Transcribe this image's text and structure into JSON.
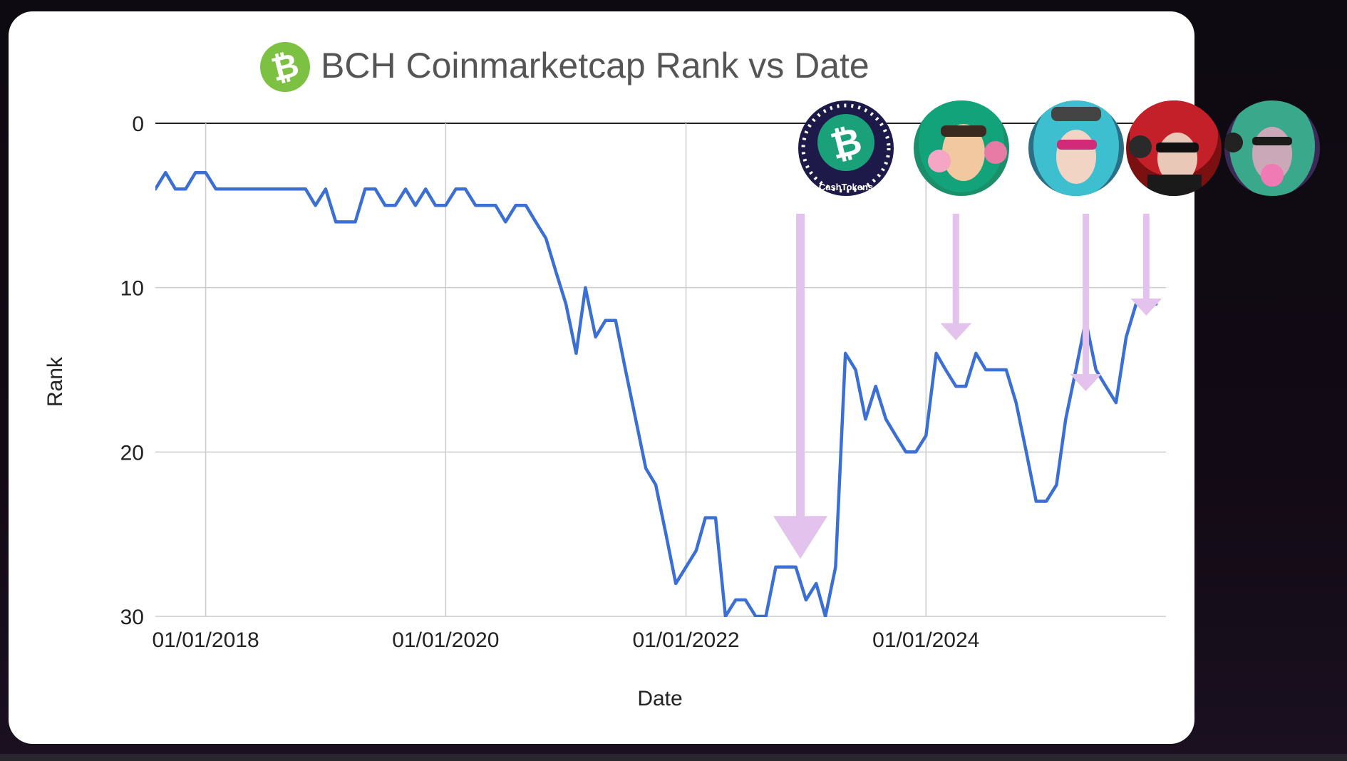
{
  "chart_data": {
    "type": "line",
    "title": "BCH Coinmarketcap Rank vs Date",
    "xlabel": "Date",
    "ylabel": "Rank",
    "y_inverted": true,
    "ylim": [
      0,
      30
    ],
    "y_ticks": [
      0,
      10,
      20,
      30
    ],
    "x_ticks": [
      "01/01/2018",
      "01/01/2020",
      "01/01/2022",
      "01/01/2024"
    ],
    "xlim": [
      "2017-08-01",
      "2025-12-31"
    ],
    "grid": true,
    "colors": {
      "line": "#3b6fd4",
      "arrows": "#e4c2ee",
      "grid": "#cccccc",
      "axis": "#222222"
    },
    "series": [
      {
        "x": [
          "2017-08-01",
          "2017-09-01",
          "2017-10-01",
          "2017-11-01",
          "2017-12-01",
          "2018-01-01",
          "2018-02-01",
          "2018-06-01",
          "2018-11-01",
          "2018-12-01",
          "2019-01-01",
          "2019-02-01",
          "2019-03-01",
          "2019-04-01",
          "2019-05-01",
          "2019-06-01",
          "2019-07-01",
          "2019-08-01",
          "2019-09-01",
          "2019-10-01",
          "2019-11-01",
          "2019-12-01",
          "2020-01-01",
          "2020-02-01",
          "2020-03-01",
          "2020-04-01",
          "2020-06-01",
          "2020-07-01",
          "2020-08-01",
          "2020-09-01",
          "2020-10-01",
          "2020-11-01",
          "2020-12-01",
          "2021-01-01",
          "2021-02-01",
          "2021-03-01",
          "2021-04-01",
          "2021-05-01",
          "2021-06-01",
          "2021-07-01",
          "2021-08-01",
          "2021-09-01",
          "2021-10-01",
          "2021-11-01",
          "2021-12-01",
          "2022-01-01",
          "2022-02-01",
          "2022-03-01",
          "2022-04-01",
          "2022-05-01",
          "2022-06-01",
          "2022-07-01",
          "2022-08-01",
          "2022-09-01",
          "2022-10-01",
          "2022-11-01",
          "2022-12-01",
          "2023-01-01",
          "2023-02-01",
          "2023-03-01",
          "2023-04-01",
          "2023-05-01",
          "2023-06-01",
          "2023-07-01",
          "2023-08-01",
          "2023-09-01",
          "2023-10-01",
          "2023-11-01",
          "2023-12-01",
          "2024-01-01",
          "2024-02-01",
          "2024-03-01",
          "2024-04-01",
          "2024-05-01",
          "2024-06-01",
          "2024-07-01",
          "2024-08-01",
          "2024-09-01",
          "2024-10-01",
          "2024-11-01",
          "2024-12-01",
          "2025-01-01",
          "2025-02-01",
          "2025-03-01",
          "2025-04-01",
          "2025-05-01",
          "2025-06-01",
          "2025-07-01",
          "2025-08-01",
          "2025-09-01",
          "2025-10-01",
          "2025-11-01",
          "2025-12-01"
        ],
        "values": [
          4,
          3,
          4,
          4,
          3,
          3,
          4,
          4,
          4,
          5,
          4,
          6,
          6,
          6,
          4,
          4,
          5,
          5,
          4,
          5,
          4,
          5,
          5,
          4,
          4,
          5,
          5,
          6,
          5,
          5,
          6,
          7,
          9,
          11,
          14,
          10,
          13,
          12,
          12,
          15,
          18,
          21,
          22,
          25,
          28,
          27,
          26,
          24,
          24,
          30,
          29,
          29,
          30,
          30,
          27,
          27,
          27,
          29,
          28,
          30,
          27,
          14,
          15,
          18,
          16,
          18,
          19,
          20,
          20,
          19,
          14,
          15,
          16,
          16,
          14,
          15,
          15,
          15,
          17,
          20,
          23,
          23,
          22,
          18,
          15,
          12,
          15,
          16,
          17,
          13,
          11,
          11,
          11
        ]
      }
    ],
    "annotations": [
      {
        "type": "arrow",
        "x": "2022-12-15",
        "from_rank": 5.5,
        "to_rank": 26.5,
        "icon": "cashtokens-badge-icon",
        "icon_label": "CashTokens"
      },
      {
        "type": "arrow",
        "x": "2024-04-01",
        "from_rank": 5.5,
        "to_rank": 13.2,
        "icon": "green-hair-avatar-icon"
      },
      {
        "type": "arrow",
        "x": "2025-05-01",
        "from_rank": 5.5,
        "to_rank": 16.3,
        "icon": "blue-hair-avatar-icon"
      },
      {
        "type": "arrow",
        "x": "2025-11-01",
        "from_rank": 5.5,
        "to_rank": 11.7,
        "icon": "red-hair-avatar-icon"
      },
      {
        "type": "icon",
        "icon": "bubblegum-avatar-icon"
      }
    ]
  },
  "logo": {
    "symbol": "₿"
  },
  "badge": {
    "symbol": "₿",
    "label": "CashTokens"
  }
}
